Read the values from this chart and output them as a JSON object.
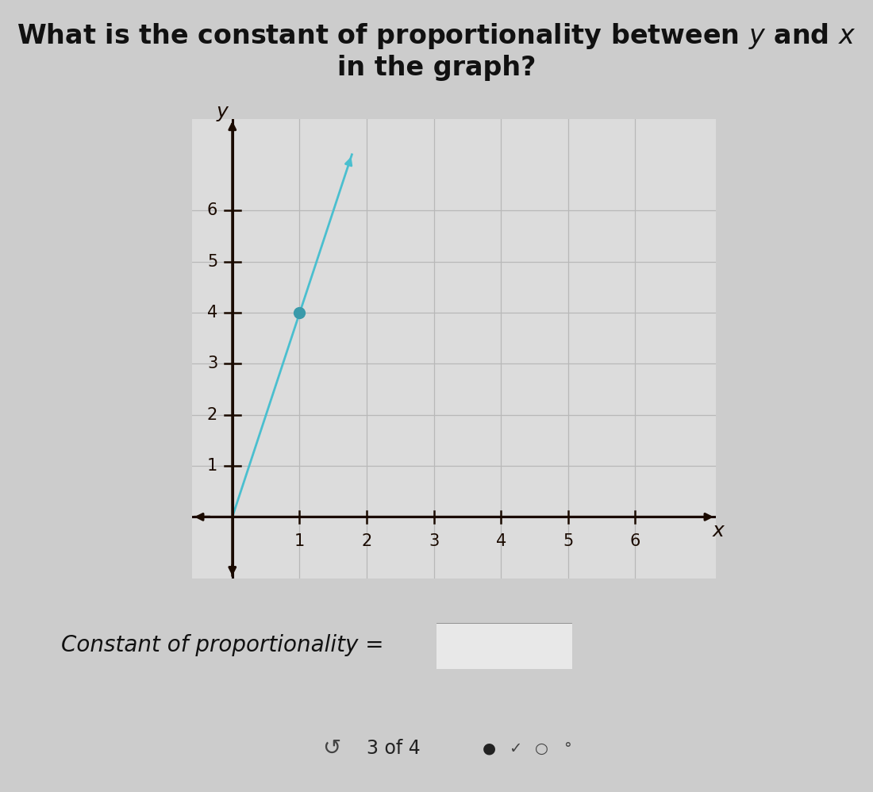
{
  "bg_color": "#cccccc",
  "graph_bg": "#dcdcdc",
  "grid_color": "#b8b8b8",
  "axis_color": "#1a0a00",
  "line_color": "#4abfcf",
  "dot_color": "#3a9aaa",
  "tick_color": "#1a0a00",
  "title_text": "What is the constant of proportionality between $y$ and $x$ in the graph?",
  "line_x": [
    0.0,
    1.78
  ],
  "line_y": [
    0.0,
    7.1
  ],
  "dot_x": 1.0,
  "dot_y": 4.0,
  "dot_size": 100,
  "xlim": [
    -0.6,
    7.2
  ],
  "ylim": [
    -1.2,
    7.8
  ],
  "xticks": [
    1,
    2,
    3,
    4,
    5,
    6
  ],
  "yticks": [
    1,
    2,
    3,
    4,
    5,
    6
  ],
  "xlabel": "x",
  "ylabel": "y",
  "answer_label": "Constant of proportionality = ",
  "footer_text": "3 of 4",
  "title_fontsize": 24,
  "tick_fontsize": 15,
  "answer_fontsize": 20,
  "footer_fontsize": 17,
  "axis_label_fontsize": 18
}
